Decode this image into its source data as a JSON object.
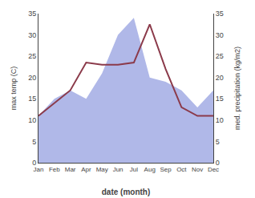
{
  "chart_data": {
    "type": "line",
    "categories": [
      "Jan",
      "Feb",
      "Mar",
      "Apr",
      "May",
      "Jun",
      "Jul",
      "Aug",
      "Sep",
      "Oct",
      "Nov",
      "Dec"
    ],
    "xlabel": "date (month)",
    "ylabel": "max temp (C)",
    "y2label": "med. precipitation (kg/m2)",
    "series": [
      {
        "type": "area",
        "color": "#b0b8e8",
        "axis": "y2",
        "values": [
          11,
          15,
          17,
          15,
          21,
          30,
          34,
          20,
          19,
          17,
          13,
          17
        ]
      },
      {
        "type": "line",
        "color": "#8B3A4A",
        "values": [
          11,
          14,
          17,
          23.5,
          23,
          23,
          23.5,
          32.5,
          22,
          13,
          11,
          11
        ]
      }
    ],
    "ylim": [
      0,
      35
    ],
    "yticks": [
      0,
      5,
      10,
      15,
      20,
      25,
      30,
      35
    ],
    "y2lim": [
      0,
      35
    ],
    "y2ticks": [
      0,
      5,
      10,
      15,
      20,
      25,
      30,
      35
    ],
    "grid": false
  }
}
